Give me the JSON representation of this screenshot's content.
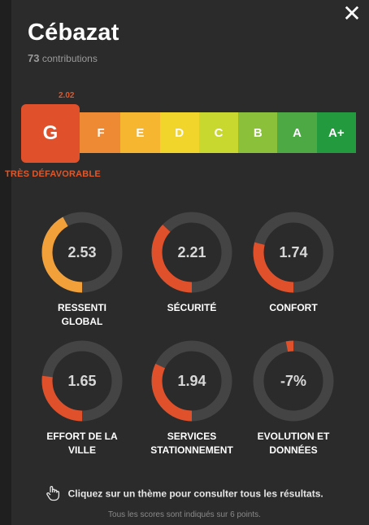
{
  "header": {
    "city": "Cébazat",
    "contributions_count": "73",
    "contributions_label": "contributions",
    "close_glyph": "✕"
  },
  "rating": {
    "score": "2.02",
    "current_grade": "G",
    "current_label": "TRÈS DÉFAVORABLE",
    "current_color": "#e0502a",
    "grades": [
      {
        "label": "F",
        "color": "#ee8a34"
      },
      {
        "label": "E",
        "color": "#f6b630"
      },
      {
        "label": "D",
        "color": "#f2d52a"
      },
      {
        "label": "C",
        "color": "#c9d82f"
      },
      {
        "label": "B",
        "color": "#8bc13a"
      },
      {
        "label": "A",
        "color": "#4ca944"
      },
      {
        "label": "A+",
        "color": "#249a3f"
      }
    ]
  },
  "themes": [
    {
      "value": "2.53",
      "label": "RESSENTI GLOBAL",
      "fraction": 0.42,
      "color": "#f2a03a"
    },
    {
      "value": "2.21",
      "label": "SÉCURITÉ",
      "fraction": 0.37,
      "color": "#e0502a"
    },
    {
      "value": "1.74",
      "label": "CONFORT",
      "fraction": 0.29,
      "color": "#e0502a"
    },
    {
      "value": "1.65",
      "label": "EFFORT DE LA VILLE",
      "fraction": 0.27,
      "color": "#e0502a"
    },
    {
      "value": "1.94",
      "label": "SERVICES STATIONNEMENT",
      "fraction": 0.32,
      "color": "#e0502a"
    },
    {
      "value": "-7%",
      "label": "EVOLUTION ET DONNÉES",
      "fraction": -0.03,
      "color": "#e0502a"
    }
  ],
  "footer": {
    "hint": "Cliquez sur un thème pour consulter tous les résultats.",
    "note": "Tous les scores sont indiqués sur 6 points.",
    "hint_icon": "pointer-hand-icon"
  }
}
